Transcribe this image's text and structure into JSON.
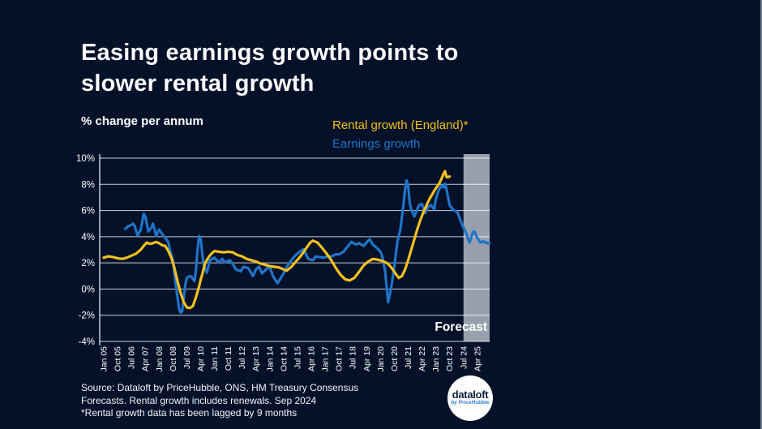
{
  "page": {
    "title_line1": "Easing earnings growth points to",
    "title_line2": "slower rental growth",
    "subtitle": "% change per annum"
  },
  "legend": {
    "rental_label": "Rental growth (England)*",
    "earnings_label": "Earnings growth"
  },
  "forecast_label": "Forecast",
  "source": {
    "line1": "Source: Dataloft by PriceHubble, ONS, HM Treasury Consensus",
    "line2": "Forecasts. Rental growth includes renewals. Sep 2024",
    "line3": "*Rental growth data has been lagged by 9 months"
  },
  "logo": {
    "name": "dataloft",
    "byline": "by PriceHubble"
  },
  "colors": {
    "background": "#041129",
    "text": "#FFFFFF",
    "rental": "#F2C11E",
    "earnings": "#1E74C8",
    "forecast_band": "#98A0AD",
    "grid": "#FFFFFF",
    "logo_text": "#0A1E3C",
    "logo_byline": "#2E7CD6"
  },
  "chart_data": {
    "type": "line",
    "title": "Easing earnings growth points to slower rental growth",
    "ylabel": "% change per annum",
    "ylim": [
      -4,
      10
    ],
    "grid": true,
    "y_tick_labels": [
      "10%",
      "8%",
      "6%",
      "4%",
      "2%",
      "0%",
      "-2%",
      "-4%"
    ],
    "y_tick_values": [
      10,
      8,
      6,
      4,
      2,
      0,
      -2,
      -4
    ],
    "x_unit": "months since Jan 2005 (monthly, % change per annum)",
    "x_tick_labels": [
      "Jan 05",
      "Oct 05",
      "Jul 06",
      "Apr 07",
      "Jan 08",
      "Oct 08",
      "Jul 09",
      "Apr 10",
      "Jan 11",
      "Oct 11",
      "Jul 12",
      "Apr 13",
      "Jan 14",
      "Oct 14",
      "Jul 15",
      "Apr 16",
      "Jan 17",
      "Oct 17",
      "Jul 18",
      "Apr 19",
      "Jan 20",
      "Oct 20",
      "Jul 21",
      "Apr 22",
      "Jan 23",
      "Oct 23",
      "Jul 24",
      "Apr 25"
    ],
    "x_tick_months": [
      0,
      9,
      18,
      27,
      36,
      45,
      54,
      63,
      72,
      81,
      90,
      99,
      108,
      117,
      126,
      135,
      144,
      153,
      162,
      171,
      180,
      189,
      198,
      207,
      216,
      225,
      234,
      243
    ],
    "x_end_month": 251,
    "forecast_start_month": 234,
    "forecast_region_label": "Forecast",
    "series": [
      {
        "name": "Rental growth (England)*",
        "color": "#F2C11E",
        "points": [
          [
            0,
            2.4
          ],
          [
            3,
            2.5
          ],
          [
            6,
            2.45
          ],
          [
            9,
            2.35
          ],
          [
            12,
            2.3
          ],
          [
            15,
            2.4
          ],
          [
            18,
            2.55
          ],
          [
            21,
            2.7
          ],
          [
            24,
            3.0
          ],
          [
            26,
            3.3
          ],
          [
            28,
            3.55
          ],
          [
            30,
            3.45
          ],
          [
            32,
            3.5
          ],
          [
            34,
            3.6
          ],
          [
            36,
            3.5
          ],
          [
            38,
            3.35
          ],
          [
            40,
            3.3
          ],
          [
            42,
            2.9
          ],
          [
            44,
            2.4
          ],
          [
            46,
            1.6
          ],
          [
            48,
            0.6
          ],
          [
            50,
            -0.3
          ],
          [
            52,
            -1.0
          ],
          [
            54,
            -1.4
          ],
          [
            56,
            -1.45
          ],
          [
            58,
            -1.3
          ],
          [
            60,
            -0.6
          ],
          [
            62,
            0.2
          ],
          [
            63,
            0.7
          ],
          [
            64,
            1.1
          ],
          [
            66,
            2.0
          ],
          [
            68,
            2.4
          ],
          [
            70,
            2.7
          ],
          [
            72,
            2.9
          ],
          [
            75,
            2.85
          ],
          [
            78,
            2.8
          ],
          [
            81,
            2.85
          ],
          [
            84,
            2.8
          ],
          [
            87,
            2.6
          ],
          [
            90,
            2.5
          ],
          [
            93,
            2.3
          ],
          [
            96,
            2.2
          ],
          [
            99,
            2.1
          ],
          [
            102,
            1.95
          ],
          [
            105,
            1.85
          ],
          [
            108,
            1.75
          ],
          [
            111,
            1.7
          ],
          [
            114,
            1.65
          ],
          [
            117,
            1.5
          ],
          [
            119,
            1.4
          ],
          [
            122,
            1.7
          ],
          [
            125,
            2.1
          ],
          [
            128,
            2.5
          ],
          [
            131,
            3.0
          ],
          [
            134,
            3.5
          ],
          [
            136,
            3.7
          ],
          [
            139,
            3.55
          ],
          [
            142,
            3.15
          ],
          [
            145,
            2.7
          ],
          [
            148,
            2.2
          ],
          [
            151,
            1.6
          ],
          [
            154,
            1.1
          ],
          [
            157,
            0.75
          ],
          [
            160,
            0.65
          ],
          [
            163,
            0.85
          ],
          [
            166,
            1.3
          ],
          [
            169,
            1.8
          ],
          [
            172,
            2.1
          ],
          [
            175,
            2.3
          ],
          [
            178,
            2.25
          ],
          [
            181,
            2.15
          ],
          [
            184,
            2.0
          ],
          [
            186,
            1.8
          ],
          [
            188,
            1.5
          ],
          [
            190,
            1.15
          ],
          [
            192,
            0.85
          ],
          [
            194,
            1.0
          ],
          [
            196,
            1.5
          ],
          [
            198,
            2.2
          ],
          [
            200,
            3.0
          ],
          [
            202,
            3.8
          ],
          [
            204,
            4.6
          ],
          [
            206,
            5.3
          ],
          [
            208,
            5.9
          ],
          [
            210,
            6.4
          ],
          [
            212,
            6.9
          ],
          [
            214,
            7.3
          ],
          [
            216,
            7.7
          ],
          [
            218,
            8.0
          ],
          [
            220,
            8.5
          ],
          [
            221,
            8.8
          ],
          [
            222,
            9.0
          ],
          [
            223,
            8.55
          ],
          [
            224,
            8.55
          ],
          [
            225,
            8.6
          ]
        ]
      },
      {
        "name": "Earnings growth",
        "color": "#1E74C8",
        "points": [
          [
            14,
            4.6
          ],
          [
            16,
            4.8
          ],
          [
            18,
            4.9
          ],
          [
            19,
            5.0
          ],
          [
            20,
            4.85
          ],
          [
            22,
            4.1
          ],
          [
            24,
            4.5
          ],
          [
            26,
            5.75
          ],
          [
            27,
            5.55
          ],
          [
            28,
            5.0
          ],
          [
            29,
            4.4
          ],
          [
            31,
            4.7
          ],
          [
            32,
            5.0
          ],
          [
            33,
            4.6
          ],
          [
            34,
            4.05
          ],
          [
            36,
            4.55
          ],
          [
            38,
            4.2
          ],
          [
            40,
            3.9
          ],
          [
            42,
            3.6
          ],
          [
            43,
            3.0
          ],
          [
            45,
            2.2
          ],
          [
            47,
            0.2
          ],
          [
            49,
            -1.5
          ],
          [
            50,
            -1.8
          ],
          [
            51,
            -1.7
          ],
          [
            53,
            0.3
          ],
          [
            54,
            0.85
          ],
          [
            56,
            1.0
          ],
          [
            57,
            0.95
          ],
          [
            59,
            0.6
          ],
          [
            60,
            1.5
          ],
          [
            61,
            3.0
          ],
          [
            62,
            4.05
          ],
          [
            63,
            3.85
          ],
          [
            64,
            2.8
          ],
          [
            65,
            1.8
          ],
          [
            67,
            1.25
          ],
          [
            69,
            2.2
          ],
          [
            72,
            2.4
          ],
          [
            75,
            2.0
          ],
          [
            77,
            2.3
          ],
          [
            79,
            2.05
          ],
          [
            82,
            2.2
          ],
          [
            84,
            1.9
          ],
          [
            86,
            1.5
          ],
          [
            89,
            1.35
          ],
          [
            91,
            1.7
          ],
          [
            94,
            1.6
          ],
          [
            97,
            1.0
          ],
          [
            99,
            1.5
          ],
          [
            101,
            1.7
          ],
          [
            103,
            1.2
          ],
          [
            106,
            1.55
          ],
          [
            108,
            1.7
          ],
          [
            110,
            1.0
          ],
          [
            113,
            0.45
          ],
          [
            115,
            0.8
          ],
          [
            117,
            1.2
          ],
          [
            119,
            1.7
          ],
          [
            122,
            2.2
          ],
          [
            124,
            2.5
          ],
          [
            127,
            2.8
          ],
          [
            130,
            3.05
          ],
          [
            133,
            2.3
          ],
          [
            136,
            2.2
          ],
          [
            138,
            2.5
          ],
          [
            140,
            2.45
          ],
          [
            143,
            2.4
          ],
          [
            146,
            2.5
          ],
          [
            148,
            2.5
          ],
          [
            151,
            2.65
          ],
          [
            153,
            2.65
          ],
          [
            156,
            2.85
          ],
          [
            159,
            3.3
          ],
          [
            161,
            3.6
          ],
          [
            164,
            3.4
          ],
          [
            166,
            3.5
          ],
          [
            169,
            3.3
          ],
          [
            172,
            3.7
          ],
          [
            173,
            3.8
          ],
          [
            175,
            3.4
          ],
          [
            178,
            3.1
          ],
          [
            180,
            2.85
          ],
          [
            181,
            2.55
          ],
          [
            183,
            1.4
          ],
          [
            185,
            -1.0
          ],
          [
            187,
            0.1
          ],
          [
            189,
            1.7
          ],
          [
            191,
            3.6
          ],
          [
            193,
            4.6
          ],
          [
            195,
            6.5
          ],
          [
            196,
            7.6
          ],
          [
            197,
            8.3
          ],
          [
            198,
            7.9
          ],
          [
            199,
            6.6
          ],
          [
            200,
            6.1
          ],
          [
            202,
            5.55
          ],
          [
            204,
            6.1
          ],
          [
            205,
            6.4
          ],
          [
            207,
            6.5
          ],
          [
            208,
            6.1
          ],
          [
            209,
            5.8
          ],
          [
            211,
            6.3
          ],
          [
            213,
            6.4
          ],
          [
            215,
            6.1
          ],
          [
            216,
            6.85
          ],
          [
            218,
            7.6
          ],
          [
            220,
            7.9
          ],
          [
            221,
            7.75
          ],
          [
            222,
            8.05
          ],
          [
            223,
            7.6
          ],
          [
            224,
            7.0
          ],
          [
            225,
            6.4
          ],
          [
            227,
            6.1
          ],
          [
            228,
            6.0
          ],
          [
            230,
            5.9
          ],
          [
            232,
            5.25
          ],
          [
            234,
            4.7
          ],
          [
            236,
            4.2
          ],
          [
            237,
            3.8
          ],
          [
            238,
            3.55
          ],
          [
            240,
            4.3
          ],
          [
            241,
            4.4
          ],
          [
            243,
            3.9
          ],
          [
            245,
            3.55
          ],
          [
            247,
            3.65
          ],
          [
            249,
            3.5
          ],
          [
            251,
            3.5
          ]
        ]
      }
    ],
    "legend_position": "top-right",
    "annotations": [
      "Forecast"
    ]
  }
}
